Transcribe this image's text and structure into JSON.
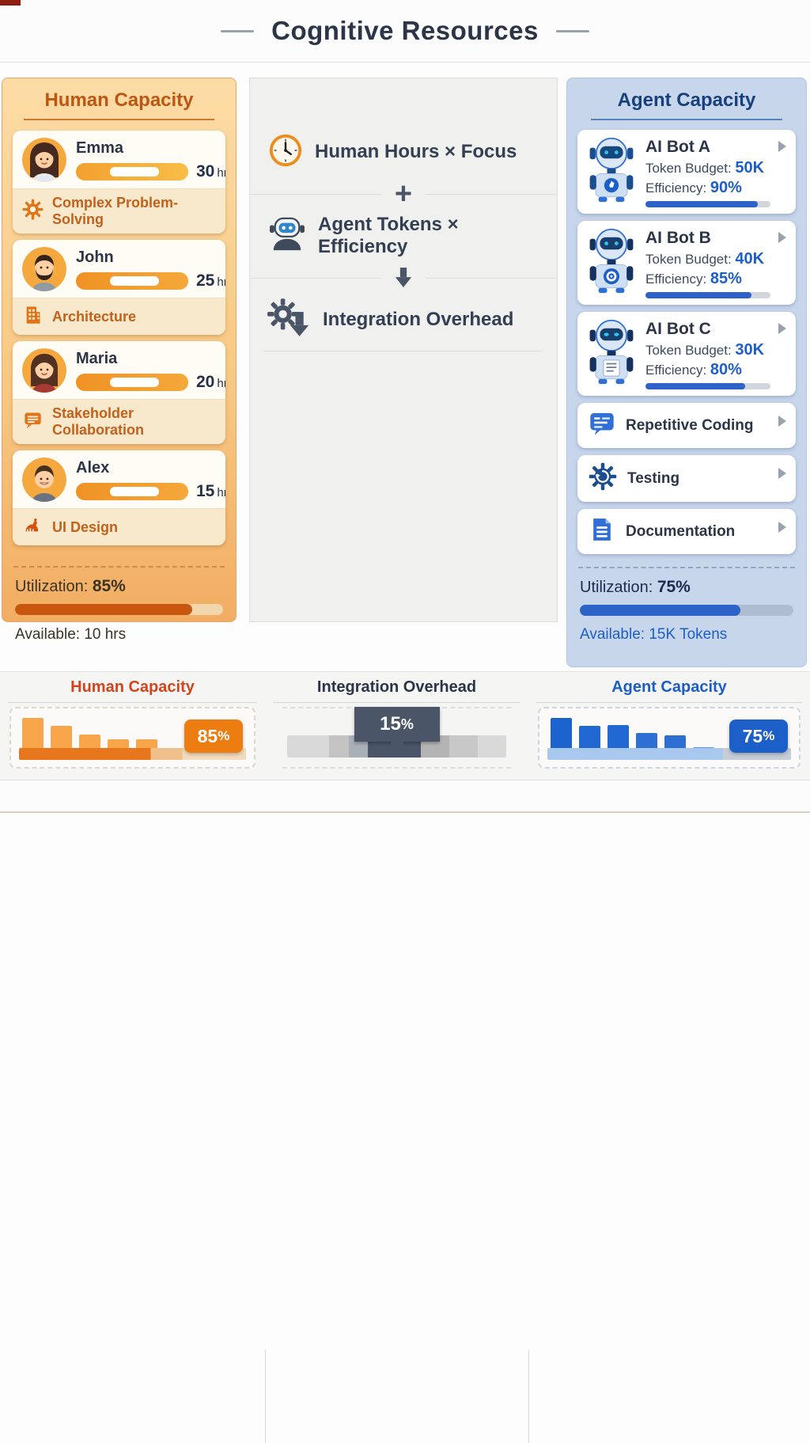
{
  "page": {
    "title": "Cognitive Resources"
  },
  "colors": {
    "human_accent": "#bf5512",
    "agent_accent": "#1d5fc9",
    "navy_text": "#2c3547",
    "human_bar_fill": "#c9560f",
    "agent_bar_fill": "#2d62c8",
    "human_badge": "#ee7d11",
    "agent_badge": "#1d5fc9",
    "overhead_badge": "#4a5568"
  },
  "human_panel": {
    "title": "Human Capacity",
    "members": [
      {
        "name": "Emma",
        "hours": "30",
        "unit": "hrs",
        "skill": "Complex Problem-Solving",
        "icon": "gear-icon"
      },
      {
        "name": "John",
        "hours": "25",
        "unit": "hrs",
        "skill": "Architecture",
        "icon": "building-icon"
      },
      {
        "name": "Maria",
        "hours": "20",
        "unit": "hrs",
        "skill": "Stakeholder Collaboration",
        "icon": "chat-icon"
      },
      {
        "name": "Alex",
        "hours": "15",
        "unit": "hrs",
        "skill": "UI Design",
        "icon": "design-icon"
      }
    ],
    "utilization_label": "Utilization: ",
    "utilization_value": "85%",
    "utilization_pct": 85,
    "available_label": "Available: ",
    "available_value": "10 hrs"
  },
  "formula_panel": {
    "rows": [
      {
        "icon": "clock-icon",
        "text": "Human Hours × Focus"
      },
      {
        "icon": "robot-icon",
        "text": "Agent Tokens × Efficiency"
      },
      {
        "icon": "gear-down-icon",
        "text": "Integration Overhead"
      }
    ],
    "plus_operator": "+"
  },
  "agent_panel": {
    "title": "Agent Capacity",
    "token_label": "Token Budget: ",
    "efficiency_label": "Efficiency: ",
    "bots": [
      {
        "name": "AI Bot A",
        "token_value": "50K",
        "efficiency_value": "90%",
        "efficiency_pct": 90
      },
      {
        "name": "AI Bot B",
        "token_value": "40K",
        "efficiency_value": "85%",
        "efficiency_pct": 85
      },
      {
        "name": "AI Bot C",
        "token_value": "30K",
        "efficiency_value": "80%",
        "efficiency_pct": 80
      }
    ],
    "tasks": [
      {
        "label": "Repetitive Coding",
        "icon": "code-chat-icon"
      },
      {
        "label": "Testing",
        "icon": "gear-refresh-icon"
      },
      {
        "label": "Documentation",
        "icon": "document-icon"
      }
    ],
    "utilization_label": "Utilization: ",
    "utilization_value": "75%",
    "utilization_pct": 75,
    "available_label": "Available: ",
    "available_value": "15K Tokens"
  },
  "bottom": {
    "human_title": "Human Capacity",
    "overhead_title": "Integration Overhead",
    "agent_title": "Agent Capacity",
    "human_badge_num": "85",
    "overhead_badge_num": "15",
    "agent_badge_num": "75",
    "pct_sign": "%"
  },
  "chart_data": [
    {
      "id": "human-capacity-mini",
      "type": "bar",
      "title": "Human Capacity",
      "values": [
        100,
        82,
        60,
        48,
        50,
        26
      ],
      "max": 110,
      "bar_colors": [
        "#f9a54b",
        "#f9a54b",
        "#f9a54b",
        "#f9a54b",
        "#f9a54b",
        "#f5c98f"
      ],
      "base_band": [
        "#e8761c",
        "#f0c08c",
        "#f3dcbd"
      ],
      "badge": "85%",
      "badge_color": "#ee7d11",
      "legend_position": "none",
      "grid": false
    },
    {
      "id": "integration-strip",
      "type": "bar",
      "orientation": "horizontal-strip",
      "title": "Integration Overhead",
      "badge": "15%",
      "badge_color": "#4a5568",
      "segments": [
        {
          "width_pct": 19,
          "color": "#d9d9d9"
        },
        {
          "width_pct": 9,
          "color": "#c3c3c3"
        },
        {
          "width_pct": 9,
          "color": "#aab0b8"
        },
        {
          "width_pct": 24,
          "color": "#4a5568"
        },
        {
          "width_pct": 13,
          "color": "#b4b4b4"
        },
        {
          "width_pct": 13,
          "color": "#c8c8c8"
        },
        {
          "width_pct": 13,
          "color": "#d9d9d9"
        }
      ]
    },
    {
      "id": "agent-capacity-mini",
      "type": "bar",
      "title": "Agent Capacity",
      "values": [
        100,
        82,
        84,
        64,
        58,
        30
      ],
      "max": 110,
      "bar_colors": [
        "#1d63cf",
        "#2268d2",
        "#2268d2",
        "#2e6fd4",
        "#2e6fd4",
        "#5b97e0"
      ],
      "base_band": [
        "#a9c8ee",
        "#c5cdd8"
      ],
      "badge": "75%",
      "badge_color": "#1d5fc9",
      "legend_position": "none",
      "grid": false
    }
  ]
}
